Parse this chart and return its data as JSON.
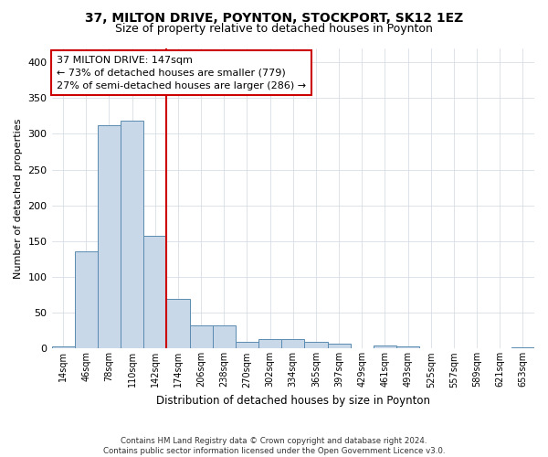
{
  "title1": "37, MILTON DRIVE, POYNTON, STOCKPORT, SK12 1EZ",
  "title2": "Size of property relative to detached houses in Poynton",
  "xlabel": "Distribution of detached houses by size in Poynton",
  "ylabel": "Number of detached properties",
  "footnote": "Contains HM Land Registry data © Crown copyright and database right 2024.\nContains public sector information licensed under the Open Government Licence v3.0.",
  "bin_labels": [
    "14sqm",
    "46sqm",
    "78sqm",
    "110sqm",
    "142sqm",
    "174sqm",
    "206sqm",
    "238sqm",
    "270sqm",
    "302sqm",
    "334sqm",
    "365sqm",
    "397sqm",
    "429sqm",
    "461sqm",
    "493sqm",
    "525sqm",
    "557sqm",
    "589sqm",
    "621sqm",
    "653sqm"
  ],
  "bar_values": [
    3,
    136,
    312,
    318,
    157,
    70,
    32,
    32,
    10,
    13,
    13,
    9,
    7,
    0,
    4,
    3,
    1,
    0,
    0,
    0,
    2
  ],
  "bar_color": "#c8d8e8",
  "bar_edge_color": "#5a8ab0",
  "highlight_idx": 4,
  "highlight_color": "#cc0000",
  "annotation_text": "37 MILTON DRIVE: 147sqm\n← 73% of detached houses are smaller (779)\n27% of semi-detached houses are larger (286) →",
  "ylim": [
    0,
    420
  ],
  "yticks": [
    0,
    50,
    100,
    150,
    200,
    250,
    300,
    350,
    400
  ],
  "background_color": "#ffffff",
  "grid_color": "#d0d8e0"
}
